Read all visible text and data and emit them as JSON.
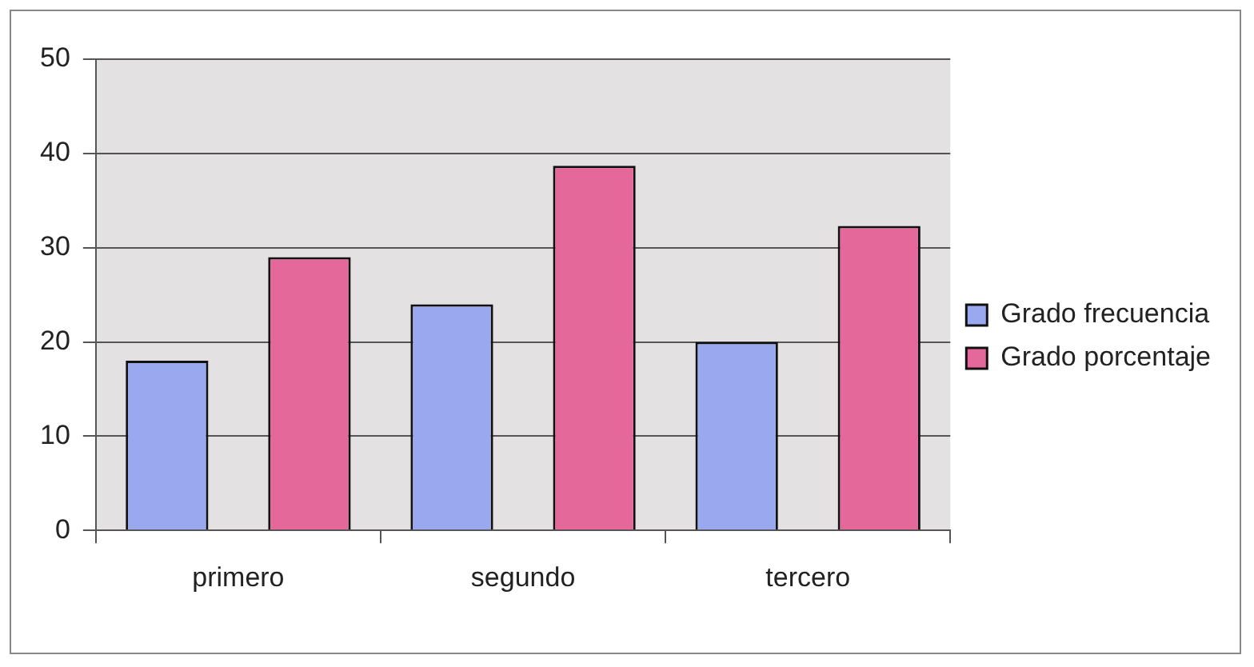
{
  "chart_data": {
    "type": "bar",
    "categories": [
      "primero",
      "segundo",
      "tercero"
    ],
    "series": [
      {
        "name": "Grado frecuencia",
        "color": "#9aa8f0",
        "values": [
          18,
          24,
          20
        ]
      },
      {
        "name": "Grado porcentaje",
        "color": "#e5689a",
        "values": [
          29,
          38.7,
          32.3
        ]
      }
    ],
    "ylim": [
      0,
      50
    ],
    "yticks": [
      0,
      10,
      20,
      30,
      40,
      50
    ],
    "grid": "y",
    "legend": "right"
  }
}
